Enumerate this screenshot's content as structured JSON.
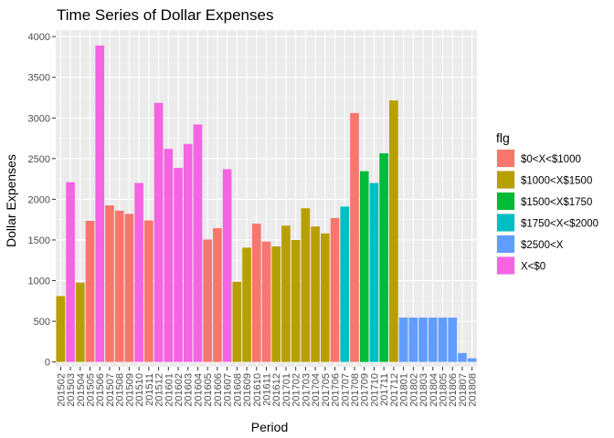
{
  "chart_data": {
    "type": "bar",
    "title": "Time Series of Dollar Expenses",
    "xlabel": "Period",
    "ylabel": "Dollar Expenses",
    "ylim": [
      -60,
      4080
    ],
    "yticks": [
      0,
      500,
      1000,
      1500,
      2000,
      2500,
      3000,
      3500,
      4000
    ],
    "grid": true,
    "legend_position": "right",
    "legend_title": "flg",
    "groups": [
      {
        "name": "$0<X<$1000",
        "color": "#F8766D"
      },
      {
        "name": "$1000<X$1500",
        "color": "#B79F00"
      },
      {
        "name": "$1500<X$1750",
        "color": "#00BA38"
      },
      {
        "name": "$1750<X<$2000",
        "color": "#00BFC4"
      },
      {
        "name": "$2500<X",
        "color": "#619CFF"
      },
      {
        "name": "X<$0",
        "color": "#F564E3"
      }
    ],
    "categories": [
      "201502",
      "201503",
      "201504",
      "201505",
      "201506",
      "201507",
      "201508",
      "201509",
      "201510",
      "201511",
      "201512",
      "201601",
      "201602",
      "201603",
      "201604",
      "201605",
      "201606",
      "201607",
      "201608",
      "201609",
      "201610",
      "201611",
      "201612",
      "201701",
      "201702",
      "201703",
      "201704",
      "201705",
      "201706",
      "201707",
      "201708",
      "201709",
      "201710",
      "201711",
      "201712",
      "201801",
      "201802",
      "201803",
      "201804",
      "201805",
      "201806",
      "201807",
      "201808"
    ],
    "xtick_labels": [
      "201502",
      "201503",
      "201504",
      "201505",
      "201506",
      "201507",
      "201508",
      "201509",
      "201510",
      "201511",
      "201512",
      "201601",
      "201602",
      "201603",
      "201604",
      "201605",
      "201606",
      "201607",
      "201608",
      "201609",
      "201610",
      "201611",
      "201612",
      "201701",
      "201702",
      "201703",
      "201704",
      "201705",
      "201706",
      "201707",
      "201708",
      "201709",
      "201710",
      "201711",
      "201712",
      "201801",
      "201802",
      "201803",
      "201804",
      "201805",
      "201806",
      "201807",
      "201808"
    ],
    "values": [
      810,
      2210,
      975,
      1735,
      3890,
      1925,
      1860,
      1820,
      2200,
      1740,
      3185,
      2620,
      2385,
      2680,
      2920,
      1505,
      1645,
      2370,
      985,
      1405,
      1700,
      1480,
      1420,
      1675,
      1500,
      1890,
      1665,
      1580,
      1770,
      1910,
      3060,
      2345,
      2200,
      2565,
      3215,
      545,
      545,
      545,
      545,
      545,
      545,
      110,
      45
    ],
    "bar_groups": [
      1,
      5,
      1,
      0,
      5,
      0,
      0,
      0,
      5,
      0,
      5,
      5,
      5,
      5,
      5,
      0,
      0,
      5,
      1,
      1,
      0,
      0,
      1,
      1,
      1,
      1,
      1,
      1,
      0,
      3,
      0,
      2,
      3,
      2,
      1,
      4,
      4,
      4,
      4,
      4,
      4,
      4,
      4
    ]
  }
}
